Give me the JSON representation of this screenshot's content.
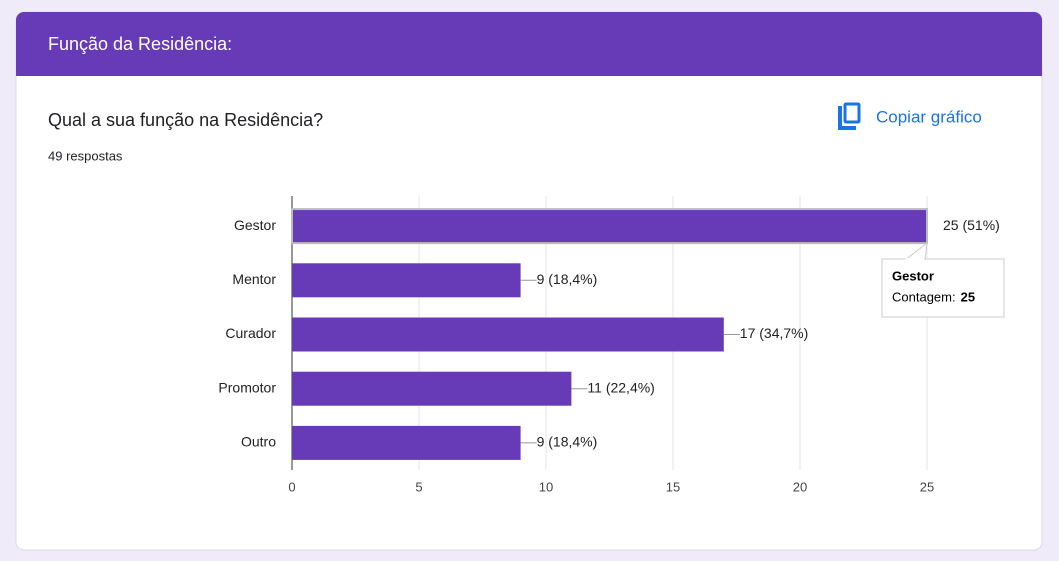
{
  "header": {
    "title": "Função da Residência:"
  },
  "question": {
    "title": "Qual a sua função na Residência?",
    "responses": "49 respostas",
    "copy_button": "Copiar gráfico"
  },
  "chart_data": {
    "type": "hbar",
    "categories": [
      "Gestor",
      "Mentor",
      "Curador",
      "Promotor",
      "Outro"
    ],
    "values": [
      25,
      9,
      17,
      11,
      9
    ],
    "value_labels": [
      "25 (51%)",
      "9 (18,4%)",
      "17 (34,7%)",
      "11 (22,4%)",
      "9 (18,4%)"
    ],
    "color": "#673ab7",
    "xlim": [
      0,
      25
    ],
    "xticks": [
      0,
      5,
      10,
      15,
      20,
      25
    ],
    "grid": true,
    "tooltip_label": "Contagem:"
  }
}
